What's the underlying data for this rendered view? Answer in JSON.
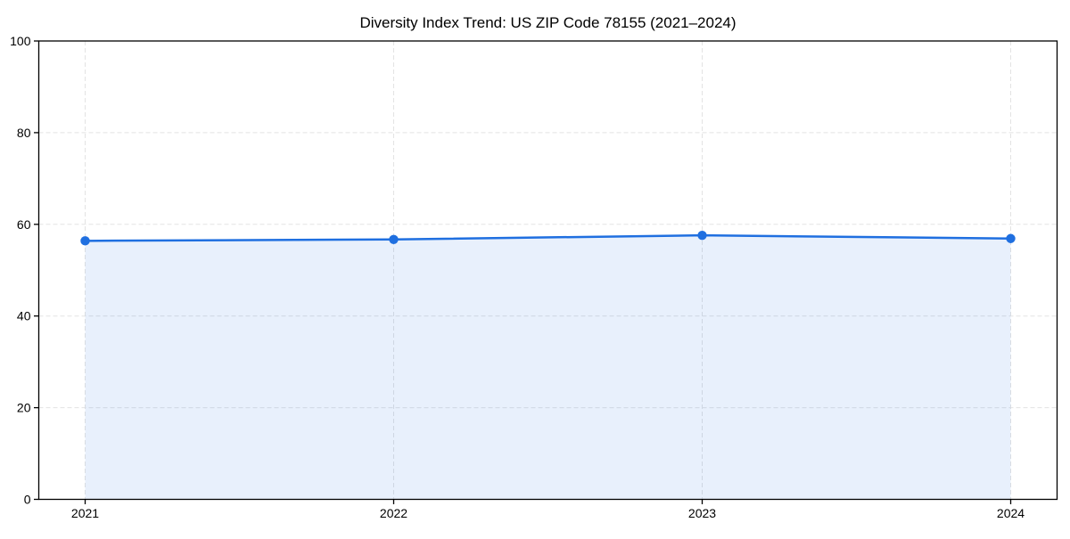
{
  "chart_data": {
    "type": "area",
    "title": "Diversity Index Trend: US ZIP Code 78155 (2021–2024)",
    "categories": [
      "2021",
      "2022",
      "2023",
      "2024"
    ],
    "series": [
      {
        "name": "Diversity Index",
        "values": [
          56.4,
          56.7,
          57.6,
          56.9
        ]
      }
    ],
    "xlabel": "",
    "ylabel": "",
    "ylim": [
      0,
      100
    ],
    "yticks": [
      0,
      20,
      40,
      60,
      80,
      100
    ],
    "grid": true,
    "grid_line_style": "dashed",
    "legend_position": "none",
    "marker": "circle",
    "colors": {
      "line": "#1f6fe0",
      "marker": "#1f6fe0",
      "fill": "rgba(31, 111, 224, 0.10)",
      "grid": "#e3e3e3",
      "spine": "#000000",
      "text": "#000000",
      "background": "#ffffff"
    }
  }
}
